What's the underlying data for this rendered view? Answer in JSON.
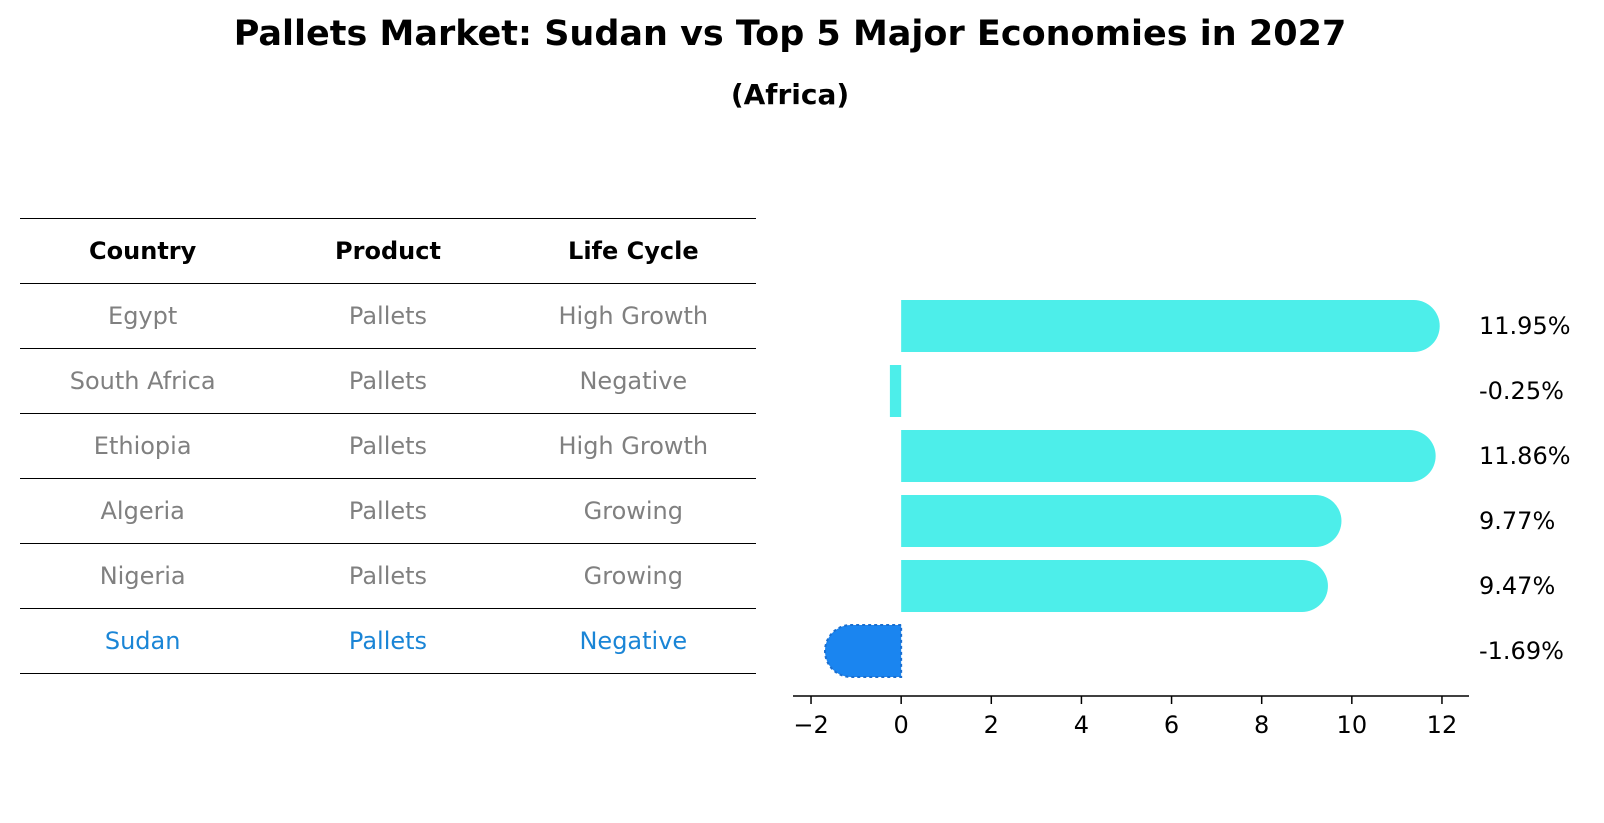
{
  "title": "Pallets Market: Sudan vs Top 5 Major Economies in 2027",
  "subtitle": "(Africa)",
  "table": {
    "headers": [
      "Country",
      "Product",
      "Life Cycle"
    ],
    "rows": [
      {
        "country": "Egypt",
        "product": "Pallets",
        "life_cycle": "High Growth",
        "highlight": false
      },
      {
        "country": "South Africa",
        "product": "Pallets",
        "life_cycle": "Negative",
        "highlight": false
      },
      {
        "country": "Ethiopia",
        "product": "Pallets",
        "life_cycle": "High Growth",
        "highlight": false
      },
      {
        "country": "Algeria",
        "product": "Pallets",
        "life_cycle": "Growing",
        "highlight": false
      },
      {
        "country": "Nigeria",
        "product": "Pallets",
        "life_cycle": "Growing",
        "highlight": false
      },
      {
        "country": "Sudan",
        "product": "Pallets",
        "life_cycle": "Negative",
        "highlight": true
      }
    ]
  },
  "colors": {
    "bar": "#4deeea",
    "highlight_bar": "#1a85f0",
    "highlight_text": "#1a85d6",
    "row_text": "#808080"
  },
  "chart_data": {
    "type": "bar",
    "orientation": "horizontal",
    "categories": [
      "Egypt",
      "South Africa",
      "Ethiopia",
      "Algeria",
      "Nigeria",
      "Sudan"
    ],
    "values": [
      11.95,
      -0.25,
      11.86,
      9.77,
      9.47,
      -1.69
    ],
    "value_labels": [
      "11.95%",
      "-0.25%",
      "11.86%",
      "9.77%",
      "9.47%",
      "-1.69%"
    ],
    "highlight": "Sudan",
    "xlim": [
      -2.4,
      12.6
    ],
    "xticks": [
      -2,
      0,
      2,
      4,
      6,
      8,
      10,
      12
    ],
    "xtick_labels": [
      "−2",
      "0",
      "2",
      "4",
      "6",
      "8",
      "10",
      "12"
    ],
    "xlabel": "",
    "ylabel": "",
    "grid": false
  }
}
